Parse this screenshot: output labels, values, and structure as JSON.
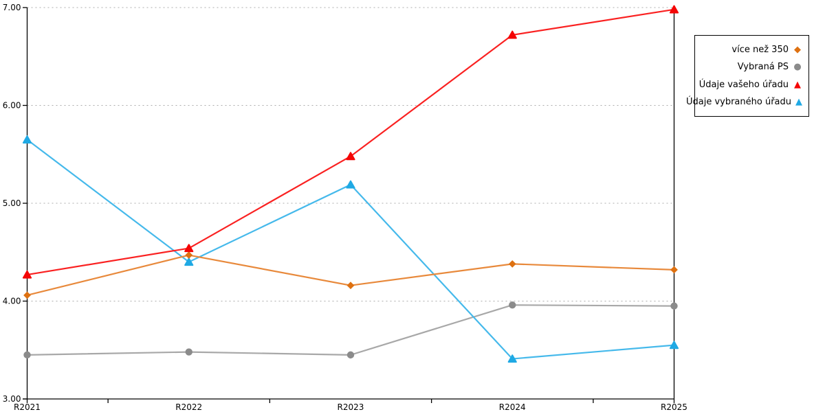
{
  "chart_data": {
    "type": "line",
    "title": "",
    "xlabel": "",
    "ylabel": "",
    "categories": [
      "R2021",
      "R2022",
      "R2023",
      "R2024",
      "R2025"
    ],
    "series": [
      {
        "name": "více než 350",
        "marker": "diamond",
        "color": "#DE7111",
        "line_color": "#E8893B",
        "values": [
          4.06,
          4.47,
          4.16,
          4.38,
          4.32
        ]
      },
      {
        "name": "Vybraná PS",
        "marker": "circle",
        "color": "#8B8B8B",
        "line_color": "#A8A8A8",
        "values": [
          3.45,
          3.48,
          3.45,
          3.96,
          3.95
        ]
      },
      {
        "name": "Údaje vašeho úřadu",
        "marker": "triangle",
        "color": "#F40505",
        "line_color": "#FA2121",
        "values": [
          4.27,
          4.54,
          5.48,
          6.72,
          6.98
        ]
      },
      {
        "name": "Údaje vybraného úřadu",
        "marker": "triangle",
        "color": "#1FA9E4",
        "line_color": "#45B9EB",
        "values": [
          5.65,
          4.4,
          5.19,
          3.41,
          3.55
        ]
      }
    ],
    "y_ticks": [
      "7.00",
      "6.00",
      "5.00",
      "4.00",
      "3.00"
    ],
    "ylim": [
      3,
      7
    ],
    "grid": "horizontal dotted",
    "grid_color": "#ABABAB",
    "axis_color": "#000000",
    "legend_position": "top-right outside",
    "draw_order": [
      1,
      3,
      0,
      2
    ]
  }
}
